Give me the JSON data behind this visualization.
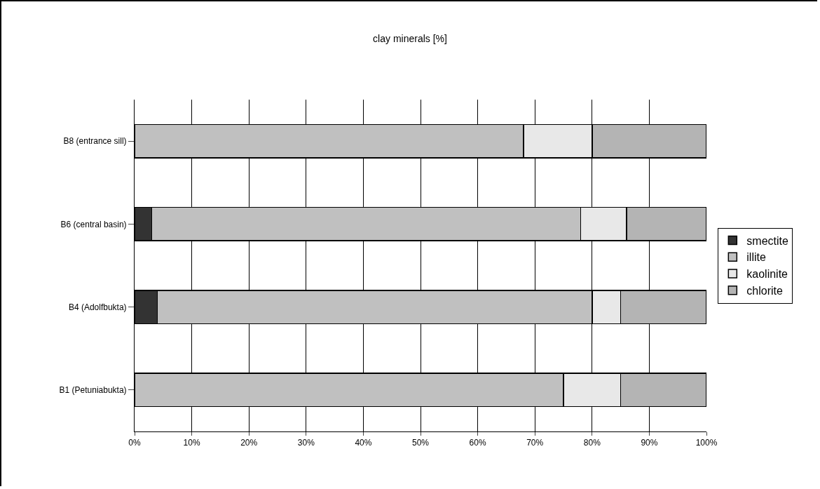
{
  "chart_data": {
    "type": "bar",
    "title": "clay minerals [%]",
    "orientation": "horizontal",
    "stacked": true,
    "categories": [
      "B8 (entrance sill)",
      "B6 (central basin)",
      "B4 (Adolfbukta)",
      "B1 (Petuniabukta)"
    ],
    "series": [
      {
        "name": "smectite",
        "color": "#333333",
        "values": [
          0,
          3,
          4,
          0
        ]
      },
      {
        "name": "illite",
        "color": "#c0c0c0",
        "values": [
          68,
          75,
          76,
          75
        ]
      },
      {
        "name": "kaolinite",
        "color": "#e8e8e8",
        "values": [
          12,
          8,
          5,
          10
        ]
      },
      {
        "name": "chlorite",
        "color": "#b4b4b4",
        "values": [
          20,
          14,
          15,
          15
        ]
      }
    ],
    "xlim": [
      0,
      100
    ],
    "xticks": [
      {
        "value": 0,
        "label": "0%"
      },
      {
        "value": 10,
        "label": "10%"
      },
      {
        "value": 20,
        "label": "20%"
      },
      {
        "value": 30,
        "label": "30%"
      },
      {
        "value": 40,
        "label": "40%"
      },
      {
        "value": 50,
        "label": "50%"
      },
      {
        "value": 60,
        "label": "60%"
      },
      {
        "value": 70,
        "label": "70%"
      },
      {
        "value": 80,
        "label": "80%"
      },
      {
        "value": 90,
        "label": "90%"
      },
      {
        "value": 100,
        "label": "100%"
      }
    ],
    "grid": "x",
    "legend": "right"
  }
}
